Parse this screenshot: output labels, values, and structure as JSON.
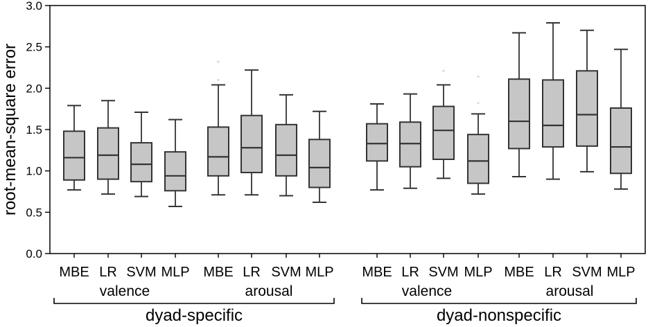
{
  "chart_data": {
    "type": "box",
    "title": "",
    "ylabel": "root-mean-square error",
    "xlabel": "",
    "ylim": [
      0.0,
      3.0
    ],
    "ytick_values": [
      0.0,
      0.5,
      1.0,
      1.5,
      2.0,
      2.5,
      3.0
    ],
    "ytick_labels": [
      "0.0",
      "0.5",
      "1.0",
      "1.5",
      "2.0",
      "2.5",
      "3.0"
    ],
    "grid": "off",
    "legend": "none",
    "box_fill": "#c6c6c6",
    "box_border": "#333333",
    "whisker_color": "#333333",
    "outlier_color": "#d9d9d9",
    "groups": [
      {
        "label": "dyad-specific",
        "subgroups": [
          {
            "label": "valence",
            "boxes": [
              {
                "label": "MBE",
                "low": 0.77,
                "q1": 0.89,
                "median": 1.16,
                "q3": 1.48,
                "high": 1.79
              },
              {
                "label": "LR",
                "low": 0.72,
                "q1": 0.9,
                "median": 1.19,
                "q3": 1.52,
                "high": 1.85
              },
              {
                "label": "SVM",
                "low": 0.69,
                "q1": 0.87,
                "median": 1.08,
                "q3": 1.34,
                "high": 1.71
              },
              {
                "label": "MLP",
                "low": 0.57,
                "q1": 0.76,
                "median": 0.94,
                "q3": 1.23,
                "high": 1.62
              }
            ]
          },
          {
            "label": "arousal",
            "boxes": [
              {
                "label": "MBE",
                "low": 0.71,
                "q1": 0.94,
                "median": 1.17,
                "q3": 1.53,
                "high": 2.04,
                "outliers": [
                  2.1,
                  2.32
                ]
              },
              {
                "label": "LR",
                "low": 0.71,
                "q1": 0.98,
                "median": 1.28,
                "q3": 1.67,
                "high": 2.22
              },
              {
                "label": "SVM",
                "low": 0.7,
                "q1": 0.94,
                "median": 1.19,
                "q3": 1.56,
                "high": 1.92
              },
              {
                "label": "MLP",
                "low": 0.62,
                "q1": 0.8,
                "median": 1.04,
                "q3": 1.38,
                "high": 1.72
              }
            ]
          }
        ]
      },
      {
        "label": "dyad-nonspecific",
        "subgroups": [
          {
            "label": "valence",
            "boxes": [
              {
                "label": "MBE",
                "low": 0.77,
                "q1": 1.12,
                "median": 1.33,
                "q3": 1.57,
                "high": 1.81
              },
              {
                "label": "LR",
                "low": 0.79,
                "q1": 1.05,
                "median": 1.33,
                "q3": 1.59,
                "high": 1.93
              },
              {
                "label": "SVM",
                "low": 0.91,
                "q1": 1.14,
                "median": 1.49,
                "q3": 1.78,
                "high": 2.04,
                "outliers": [
                  2.21
                ]
              },
              {
                "label": "MLP",
                "low": 0.72,
                "q1": 0.85,
                "median": 1.12,
                "q3": 1.44,
                "high": 1.69,
                "outliers": [
                  1.82,
                  2.14
                ]
              }
            ]
          },
          {
            "label": "arousal",
            "boxes": [
              {
                "label": "MBE",
                "low": 0.93,
                "q1": 1.27,
                "median": 1.6,
                "q3": 2.11,
                "high": 2.67
              },
              {
                "label": "LR",
                "low": 0.9,
                "q1": 1.29,
                "median": 1.55,
                "q3": 2.1,
                "high": 2.79
              },
              {
                "label": "SVM",
                "low": 0.99,
                "q1": 1.3,
                "median": 1.68,
                "q3": 2.21,
                "high": 2.7
              },
              {
                "label": "MLP",
                "low": 0.78,
                "q1": 0.97,
                "median": 1.29,
                "q3": 1.76,
                "high": 2.47
              }
            ]
          }
        ]
      }
    ]
  }
}
